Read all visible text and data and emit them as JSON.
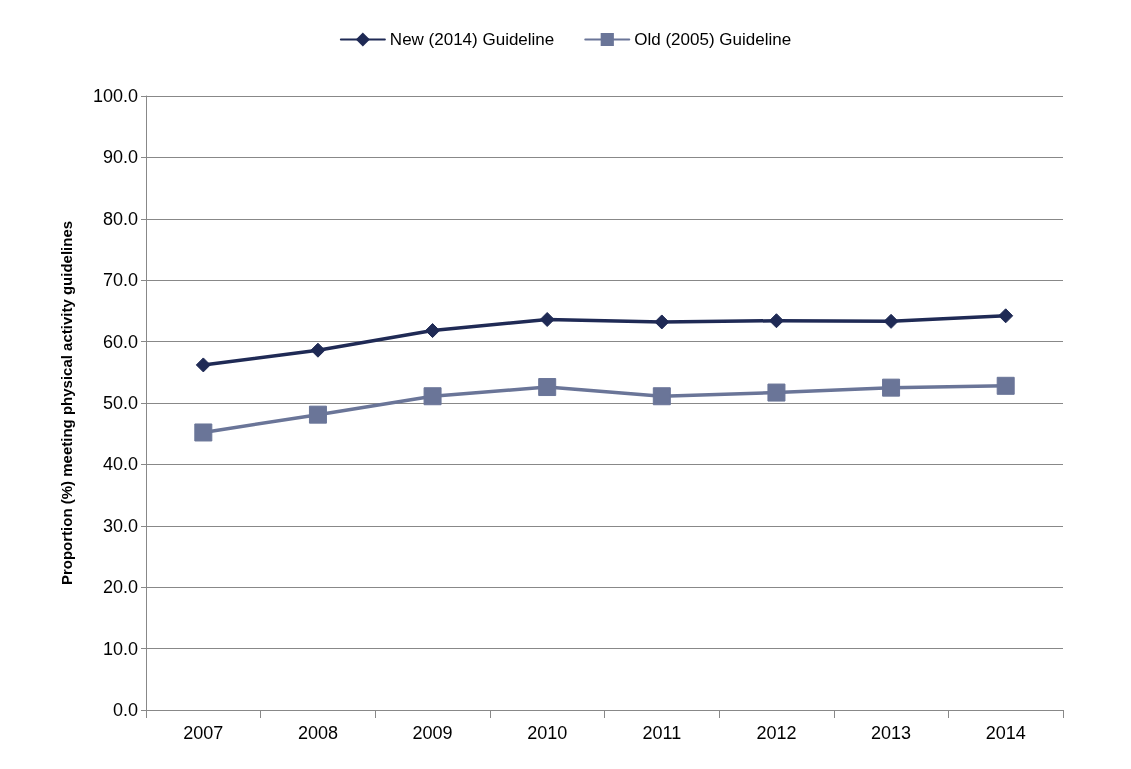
{
  "chart_data": {
    "type": "line",
    "ylabel": "Proportion (%) meeting physical activity guidelines",
    "categories": [
      "2007",
      "2008",
      "2009",
      "2010",
      "2011",
      "2012",
      "2013",
      "2014"
    ],
    "series": [
      {
        "name": "New (2014) Guideline",
        "color": "#1f2a55",
        "marker": "diamond",
        "values": [
          56.2,
          58.6,
          61.8,
          63.6,
          63.2,
          63.4,
          63.3,
          64.2
        ]
      },
      {
        "name": "Old (2005) Guideline",
        "color": "#6a7598",
        "marker": "square",
        "values": [
          45.2,
          48.1,
          51.1,
          52.6,
          51.1,
          51.7,
          52.5,
          52.8
        ]
      }
    ],
    "ylim": [
      0,
      100
    ],
    "yticks": [
      {
        "value": 0,
        "label": "0.0"
      },
      {
        "value": 10,
        "label": "10.0"
      },
      {
        "value": 20,
        "label": "20.0"
      },
      {
        "value": 30,
        "label": "30.0"
      },
      {
        "value": 40,
        "label": "40.0"
      },
      {
        "value": 50,
        "label": "50.0"
      },
      {
        "value": 60,
        "label": "60.0"
      },
      {
        "value": 70,
        "label": "70.0"
      },
      {
        "value": 80,
        "label": "80.0"
      },
      {
        "value": 90,
        "label": "90.0"
      },
      {
        "value": 100,
        "label": "100.0"
      }
    ],
    "grid": "y",
    "legend": "top",
    "line_style": "solid"
  }
}
